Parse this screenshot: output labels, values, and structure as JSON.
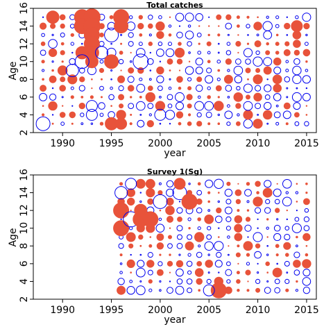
{
  "colors": {
    "positive": "#e8533a",
    "negative": "#0000ee",
    "axis": "#000000"
  },
  "chart_data": [
    {
      "type": "scatter",
      "subtype": "bubble-residuals",
      "title": "Total catches",
      "xlabel": "year",
      "ylabel": "Age",
      "xlim": [
        1987,
        2016
      ],
      "ylim": [
        2,
        16
      ],
      "xticks": [
        1990,
        1995,
        2000,
        2005,
        2010,
        2015
      ],
      "yticks": [
        2,
        4,
        6,
        8,
        10,
        12,
        14,
        16
      ],
      "years": [
        1988,
        2015
      ],
      "ages": [
        3,
        15
      ],
      "seed": 11,
      "highlights": [
        {
          "x": 1988,
          "y": 3,
          "r": 10,
          "sign": "negative"
        },
        {
          "x": 1989,
          "y": 15,
          "r": 9,
          "sign": "positive"
        },
        {
          "x": 1992,
          "y": 15,
          "r": 11,
          "sign": "positive"
        },
        {
          "x": 1992,
          "y": 14,
          "r": 11,
          "sign": "positive"
        },
        {
          "x": 1993,
          "y": 15,
          "r": 12,
          "sign": "positive"
        },
        {
          "x": 1993,
          "y": 14,
          "r": 12,
          "sign": "positive"
        },
        {
          "x": 1993,
          "y": 13,
          "r": 11,
          "sign": "positive"
        },
        {
          "x": 1993,
          "y": 12,
          "r": 11,
          "sign": "positive"
        },
        {
          "x": 1993,
          "y": 11,
          "r": 10,
          "sign": "positive"
        },
        {
          "x": 1993,
          "y": 10,
          "r": 9,
          "sign": "positive"
        },
        {
          "x": 1992,
          "y": 11,
          "r": 9,
          "sign": "positive"
        },
        {
          "x": 1992,
          "y": 10,
          "r": 10,
          "sign": "negative"
        },
        {
          "x": 1991,
          "y": 9,
          "r": 9,
          "sign": "negative"
        },
        {
          "x": 1993,
          "y": 4,
          "r": 8,
          "sign": "negative"
        },
        {
          "x": 1993,
          "y": 5,
          "r": 8,
          "sign": "negative"
        },
        {
          "x": 1994,
          "y": 11,
          "r": 9,
          "sign": "negative"
        },
        {
          "x": 1995,
          "y": 10,
          "r": 10,
          "sign": "positive"
        },
        {
          "x": 1995,
          "y": 13,
          "r": 10,
          "sign": "negative"
        },
        {
          "x": 1996,
          "y": 15,
          "r": 11,
          "sign": "positive"
        },
        {
          "x": 1996,
          "y": 14,
          "r": 10,
          "sign": "positive"
        },
        {
          "x": 1998,
          "y": 10,
          "r": 11,
          "sign": "negative"
        },
        {
          "x": 1995,
          "y": 3,
          "r": 9,
          "sign": "positive"
        },
        {
          "x": 1996,
          "y": 3,
          "r": 8,
          "sign": "positive"
        },
        {
          "x": 2000,
          "y": 4,
          "r": 8,
          "sign": "negative"
        },
        {
          "x": 2014,
          "y": 14,
          "r": 8,
          "sign": "positive"
        }
      ]
    },
    {
      "type": "scatter",
      "subtype": "bubble-residuals",
      "title": "Survey 1(Sg)",
      "xlabel": "year",
      "ylabel": "Age",
      "xlim": [
        1987,
        2016
      ],
      "ylim": [
        2,
        16
      ],
      "xticks": [
        1990,
        1995,
        2000,
        2005,
        2010,
        2015
      ],
      "yticks": [
        2,
        4,
        6,
        8,
        10,
        12,
        14,
        16
      ],
      "years": [
        1996,
        2015
      ],
      "ages": [
        3,
        15
      ],
      "seed": 29,
      "highlights": [
        {
          "x": 1996,
          "y": 12,
          "r": 11,
          "sign": "positive"
        },
        {
          "x": 1996,
          "y": 10,
          "r": 11,
          "sign": "positive"
        },
        {
          "x": 1997,
          "y": 11,
          "r": 11,
          "sign": "negative"
        },
        {
          "x": 1998,
          "y": 11,
          "r": 11,
          "sign": "positive"
        },
        {
          "x": 1999,
          "y": 11,
          "r": 11,
          "sign": "positive"
        },
        {
          "x": 1998,
          "y": 12,
          "r": 9,
          "sign": "positive"
        },
        {
          "x": 2000,
          "y": 13,
          "r": 10,
          "sign": "negative"
        },
        {
          "x": 2002,
          "y": 14,
          "r": 10,
          "sign": "negative"
        },
        {
          "x": 2003,
          "y": 13,
          "r": 11,
          "sign": "positive"
        },
        {
          "x": 2002,
          "y": 15,
          "r": 8,
          "sign": "positive"
        },
        {
          "x": 2006,
          "y": 3,
          "r": 11,
          "sign": "positive"
        },
        {
          "x": 2005,
          "y": 3,
          "r": 8,
          "sign": "negative"
        },
        {
          "x": 1996,
          "y": 14,
          "r": 9,
          "sign": "negative"
        },
        {
          "x": 1997,
          "y": 15,
          "r": 8,
          "sign": "negative"
        }
      ]
    }
  ]
}
